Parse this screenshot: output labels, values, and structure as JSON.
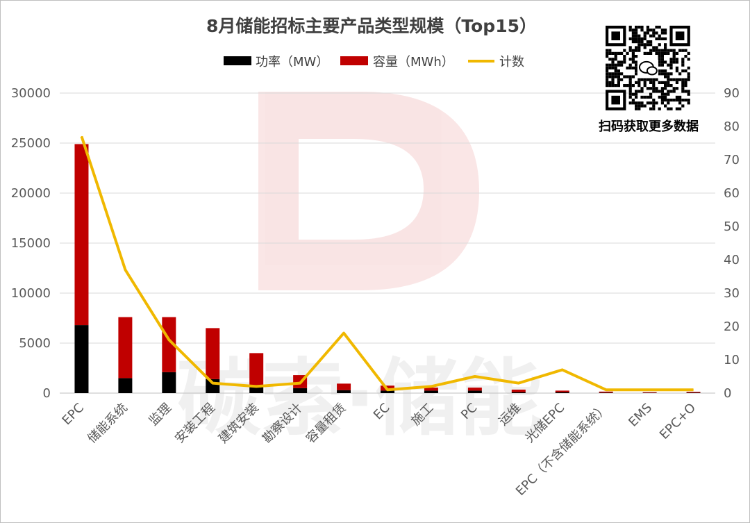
{
  "qr_caption": "扫码获取更多数据",
  "watermark_text": "碳索·储能",
  "chart_data": {
    "type": "bar",
    "stacked": true,
    "title": "8月储能招标主要产品类型规模（Top15）",
    "legend_position": "top",
    "categories": [
      "EPC",
      "储能系统",
      "监理",
      "安装工程",
      "建筑安装",
      "勘察设计",
      "容量租赁",
      "EC",
      "施工",
      "PC",
      "运维",
      "光储EPC",
      "EPC（不含储能系统）",
      "EMS",
      "EPC+O"
    ],
    "series": [
      {
        "name": "功率（MW）",
        "type": "bar",
        "axis": "left",
        "color": "#000000",
        "values": [
          6800,
          1500,
          2100,
          1400,
          600,
          500,
          300,
          250,
          250,
          250,
          100,
          100,
          50,
          30,
          50
        ]
      },
      {
        "name": "容量（MWh）",
        "type": "bar",
        "axis": "left",
        "color": "#c00000",
        "values": [
          18100,
          6100,
          5500,
          5100,
          3400,
          1300,
          650,
          500,
          300,
          300,
          250,
          150,
          100,
          60,
          80
        ]
      },
      {
        "name": "计数",
        "type": "line",
        "axis": "right",
        "color": "#f0b800",
        "values": [
          77,
          37,
          16,
          3,
          2,
          3,
          18,
          1,
          2,
          5,
          3,
          7,
          1,
          1,
          1
        ]
      }
    ],
    "y_left": {
      "min": 0,
      "max": 30000,
      "ticks": [
        0,
        5000,
        10000,
        15000,
        20000,
        25000,
        30000
      ]
    },
    "y_right": {
      "min": 0,
      "max": 90,
      "ticks": [
        0,
        10,
        20,
        30,
        40,
        50,
        60,
        70,
        80,
        90
      ]
    },
    "grid": true
  }
}
